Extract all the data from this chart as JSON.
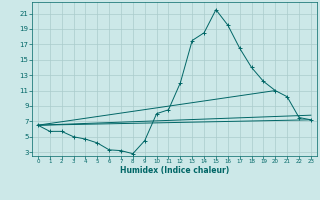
{
  "xlabel": "Humidex (Indice chaleur)",
  "ylabel": "",
  "background_color": "#cce8e8",
  "grid_color": "#aacccc",
  "line_color": "#006666",
  "xlim": [
    -0.5,
    23.5
  ],
  "ylim": [
    2.5,
    22.5
  ],
  "yticks": [
    3,
    5,
    7,
    9,
    11,
    13,
    15,
    17,
    19,
    21
  ],
  "xticks": [
    0,
    1,
    2,
    3,
    4,
    5,
    6,
    7,
    8,
    9,
    10,
    11,
    12,
    13,
    14,
    15,
    16,
    17,
    18,
    19,
    20,
    21,
    22,
    23
  ],
  "main_x": [
    0,
    1,
    2,
    3,
    4,
    5,
    6,
    7,
    8,
    9,
    10,
    11,
    12,
    13,
    14,
    15,
    16,
    17,
    18,
    19,
    20,
    21,
    22,
    23
  ],
  "main_y": [
    6.5,
    5.7,
    5.7,
    5.0,
    4.7,
    4.2,
    3.3,
    3.2,
    2.8,
    4.5,
    8.0,
    8.5,
    12.0,
    17.5,
    18.5,
    21.5,
    19.5,
    16.5,
    14.0,
    12.2,
    11.0,
    10.2,
    7.5,
    7.2
  ],
  "line2_x": [
    0,
    23
  ],
  "line2_y": [
    6.5,
    7.2
  ],
  "line3_x": [
    0,
    20
  ],
  "line3_y": [
    6.5,
    11.0
  ],
  "line4_x": [
    0,
    23
  ],
  "line4_y": [
    6.5,
    7.8
  ]
}
